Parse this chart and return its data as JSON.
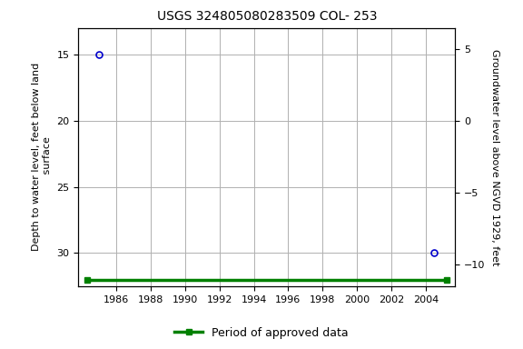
{
  "title": "USGS 324805080283509 COL- 253",
  "ylabel_left": "Depth to water level, feet below land\n surface",
  "ylabel_right": "Groundwater level above NGVD 1929, feet",
  "xlabel": "",
  "ylim_left": [
    32.5,
    13.0
  ],
  "ylim_right": [
    -11.5,
    6.5
  ],
  "xlim": [
    1983.8,
    2005.7
  ],
  "xticks": [
    1986,
    1988,
    1990,
    1992,
    1994,
    1996,
    1998,
    2000,
    2002,
    2004
  ],
  "yticks_left": [
    15,
    20,
    25,
    30
  ],
  "yticks_right": [
    5,
    0,
    -5,
    -10
  ],
  "data_points_x": [
    1985.0,
    2004.5
  ],
  "data_points_y": [
    15.0,
    30.0
  ],
  "point_color": "#0000cc",
  "point_marker": "o",
  "point_size": 5,
  "period_bar_x1": 1984.3,
  "period_bar_x2": 2005.2,
  "period_bar_y": 32.0,
  "bar_color": "#008000",
  "bar_marker": "s",
  "bar_marker_size": 5,
  "bar_linewidth": 2.5,
  "grid_color": "#b0b0b0",
  "background_color": "#ffffff",
  "plot_bg_color": "#ffffff",
  "font_family": "Courier New",
  "title_fontsize": 10,
  "label_fontsize": 8,
  "tick_fontsize": 8,
  "legend_label": "Period of approved data",
  "legend_color": "#008000",
  "legend_fontsize": 9
}
